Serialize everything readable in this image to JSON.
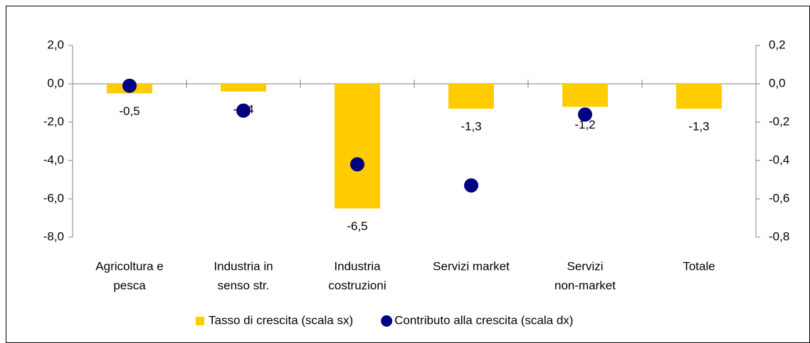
{
  "chart_data": {
    "type": "bar",
    "categories": [
      [
        "Agricoltura e",
        "pesca"
      ],
      [
        "Industria in",
        "senso str."
      ],
      [
        "Industria",
        "costruzioni"
      ],
      [
        "Servizi market"
      ],
      [
        "Servizi",
        "non-market"
      ],
      [
        "Totale"
      ]
    ],
    "series": [
      {
        "name": "Tasso di crescita (scala sx)",
        "type": "bar",
        "color": "#ffcc00",
        "values": [
          -0.5,
          -0.4,
          -6.5,
          -1.3,
          -1.2,
          -1.3
        ],
        "value_labels": [
          "-0,5",
          "-0,4",
          "-6,5",
          "-1,3",
          "-1,2",
          "-1,3"
        ]
      },
      {
        "name": "Contributo alla crescita (scala dx)",
        "type": "scatter",
        "color": "#000080",
        "axis": "y2",
        "values": [
          -0.01,
          -0.14,
          -0.42,
          -0.53,
          -0.16,
          null
        ]
      }
    ],
    "ylim": [
      -8,
      2
    ],
    "yticks": [
      {
        "value": 2,
        "label": "2,0"
      },
      {
        "value": 0,
        "label": "0,0"
      },
      {
        "value": -2,
        "label": "-2,0"
      },
      {
        "value": -4,
        "label": "-4,0"
      },
      {
        "value": -6,
        "label": "-6,0"
      },
      {
        "value": -8,
        "label": "-8,0"
      }
    ],
    "y2lim": [
      -0.8,
      0.2
    ],
    "y2ticks": [
      {
        "value": 0.2,
        "label": "0,2"
      },
      {
        "value": 0,
        "label": "0,0"
      },
      {
        "value": -0.2,
        "label": "-0,2"
      },
      {
        "value": -0.4,
        "label": "-0,4"
      },
      {
        "value": -0.6,
        "label": "-0,6"
      },
      {
        "value": -0.8,
        "label": "-0,8"
      }
    ],
    "legend": "bottom"
  }
}
